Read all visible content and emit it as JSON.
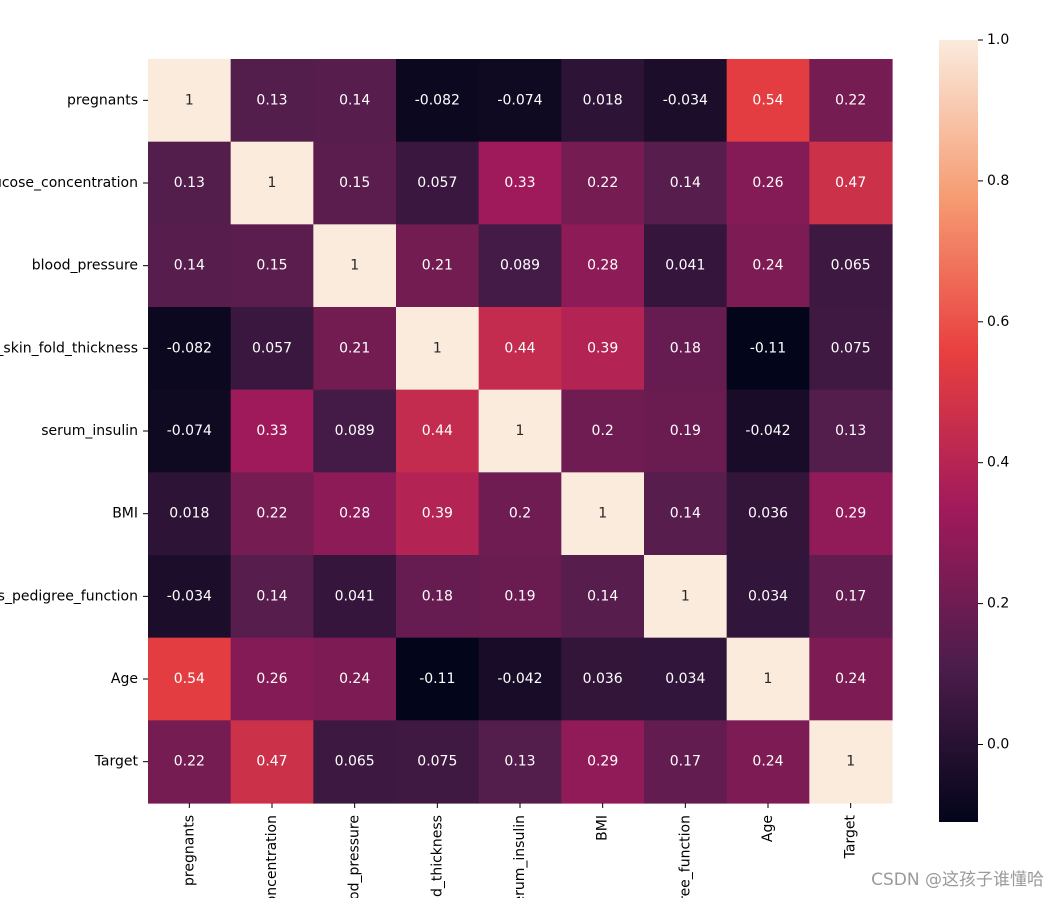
{
  "chart_data": {
    "type": "heatmap",
    "title": "",
    "xlabel": "",
    "ylabel": "",
    "labels": [
      "pregnants",
      "glucose_concentration",
      "blood_pressure",
      "triceps_skin_fold_thickness",
      "serum_insulin",
      "BMI",
      "diabetes_pedigree_function",
      "Age",
      "Target"
    ],
    "row_labels_visible": [
      "pregnants",
      "ucose_concentration",
      "blood_pressure",
      "_skin_fold_thickness",
      "serum_insulin",
      "BMI",
      "s_pedigree_function",
      "Age",
      "Target"
    ],
    "col_labels_visible": [
      "pregnants",
      "oncentration",
      "od_pressure",
      "ld_thickness",
      "erum_insulin",
      "BMI",
      "ree_function",
      "Age",
      "Target"
    ],
    "matrix": [
      [
        "1",
        "0.13",
        "0.14",
        "-0.082",
        "-0.074",
        "0.018",
        "-0.034",
        "0.54",
        "0.22"
      ],
      [
        "0.13",
        "1",
        "0.15",
        "0.057",
        "0.33",
        "0.22",
        "0.14",
        "0.26",
        "0.47"
      ],
      [
        "0.14",
        "0.15",
        "1",
        "0.21",
        "0.089",
        "0.28",
        "0.041",
        "0.24",
        "0.065"
      ],
      [
        "-0.082",
        "0.057",
        "0.21",
        "1",
        "0.44",
        "0.39",
        "0.18",
        "-0.11",
        "0.075"
      ],
      [
        "-0.074",
        "0.33",
        "0.089",
        "0.44",
        "1",
        "0.2",
        "0.19",
        "-0.042",
        "0.13"
      ],
      [
        "0.018",
        "0.22",
        "0.28",
        "0.39",
        "0.2",
        "1",
        "0.14",
        "0.036",
        "0.29"
      ],
      [
        "-0.034",
        "0.14",
        "0.041",
        "0.18",
        "0.19",
        "0.14",
        "1",
        "0.034",
        "0.17"
      ],
      [
        "0.54",
        "0.26",
        "0.24",
        "-0.11",
        "-0.042",
        "0.036",
        "0.034",
        "1",
        "0.24"
      ],
      [
        "0.22",
        "0.47",
        "0.065",
        "0.075",
        "0.13",
        "0.29",
        "0.17",
        "0.24",
        "1"
      ]
    ],
    "colorbar": {
      "vmin": -0.11,
      "vmax": 1.0,
      "ticks": [
        "0.0",
        "0.2",
        "0.4",
        "0.6",
        "0.8",
        "1.0"
      ],
      "colormap": "rocket",
      "stops": [
        "#03051a",
        "#4c1d4b",
        "#a11a5b",
        "#e83f3f",
        "#f69c73",
        "#faebdd"
      ]
    },
    "annotation_colors": {
      "dark": "#262626",
      "light": "#ffffff"
    }
  },
  "watermark": "CSDN @这孩子谁懂哈"
}
